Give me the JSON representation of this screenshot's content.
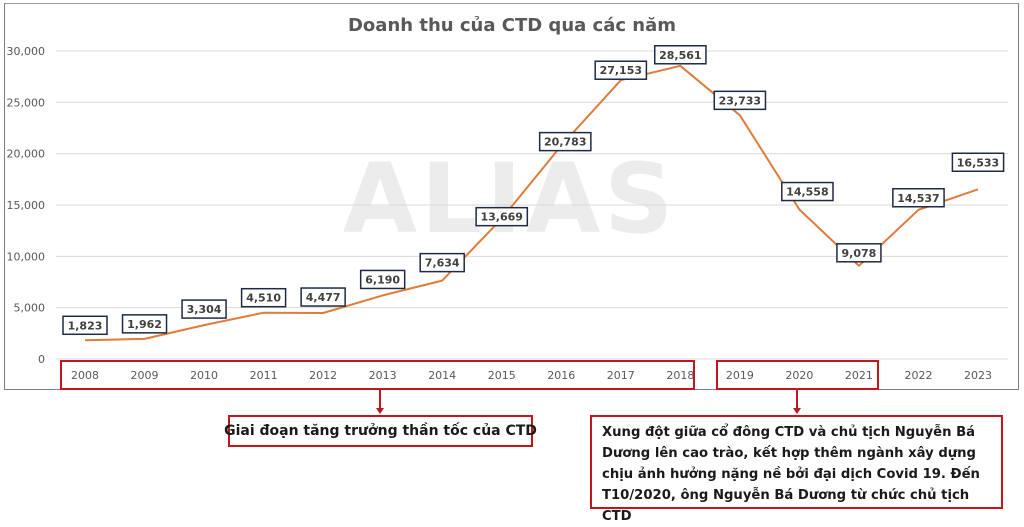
{
  "chart_data": {
    "type": "line",
    "title": "Doanh thu của CTD qua các năm",
    "xlabel": "",
    "ylabel": "",
    "categories": [
      "2008",
      "2009",
      "2010",
      "2011",
      "2012",
      "2013",
      "2014",
      "2015",
      "2016",
      "2017",
      "2018",
      "2019",
      "2020",
      "2021",
      "2022",
      "2023"
    ],
    "series": [
      {
        "name": "Doanh thu",
        "color": "#e07b39",
        "values": [
          1823,
          1962,
          3304,
          4510,
          4477,
          6190,
          7634,
          13669,
          20783,
          27153,
          28561,
          23733,
          14558,
          9078,
          14537,
          16533
        ]
      }
    ],
    "data_labels": [
      "1,823",
      "1,962",
      "3,304",
      "4,510",
      "4,477",
      "6,190",
      "7,634",
      "13,669",
      "20,783",
      "27,153",
      "28,561",
      "23,733",
      "14,558",
      "9,078",
      "14,537",
      "16,533"
    ],
    "ylim": [
      0,
      30000
    ],
    "yticks": [
      0,
      5000,
      10000,
      15000,
      20000,
      25000,
      30000
    ],
    "ytick_labels": [
      "0",
      "5,000",
      "10,000",
      "15,000",
      "20,000",
      "25,000",
      "30,000"
    ],
    "grid": true,
    "legend": "none",
    "annotations": [
      {
        "years": [
          "2008",
          "2018"
        ],
        "text": "Giai đoạn tăng trưởng thần tốc của CTD"
      },
      {
        "years": [
          "2019",
          "2021"
        ],
        "text": "Xung đột giữa cổ đông CTD và chủ tịch Nguyễn Bá Dương lên cao trào, kết hợp thêm ngành xây dựng chịu ảnh hưởng nặng nề bởi đại dịch Covid 19. Đến T10/2020, ông Nguyễn Bá Dương từ chức chủ tịch CTD"
      }
    ]
  },
  "watermark": "ALIAS",
  "colors": {
    "line": "#e07b39",
    "highlight_red": "#c0161d",
    "grid": "#d9d9d9",
    "label_border": "#1f2a44"
  },
  "notes": {
    "growth": "Giai đoạn tăng trưởng thần tốc của CTD",
    "conflict_lines": [
      "Xung đột giữa cổ đông CTD và chủ tịch Nguyễn Bá",
      "Dương lên cao trào, kết hợp thêm ngành xây dựng",
      "chịu ảnh hưởng nặng nề bởi đại dịch Covid 19. Đến",
      "T10/2020, ông Nguyễn Bá Dương từ chức chủ tịch CTD"
    ]
  }
}
